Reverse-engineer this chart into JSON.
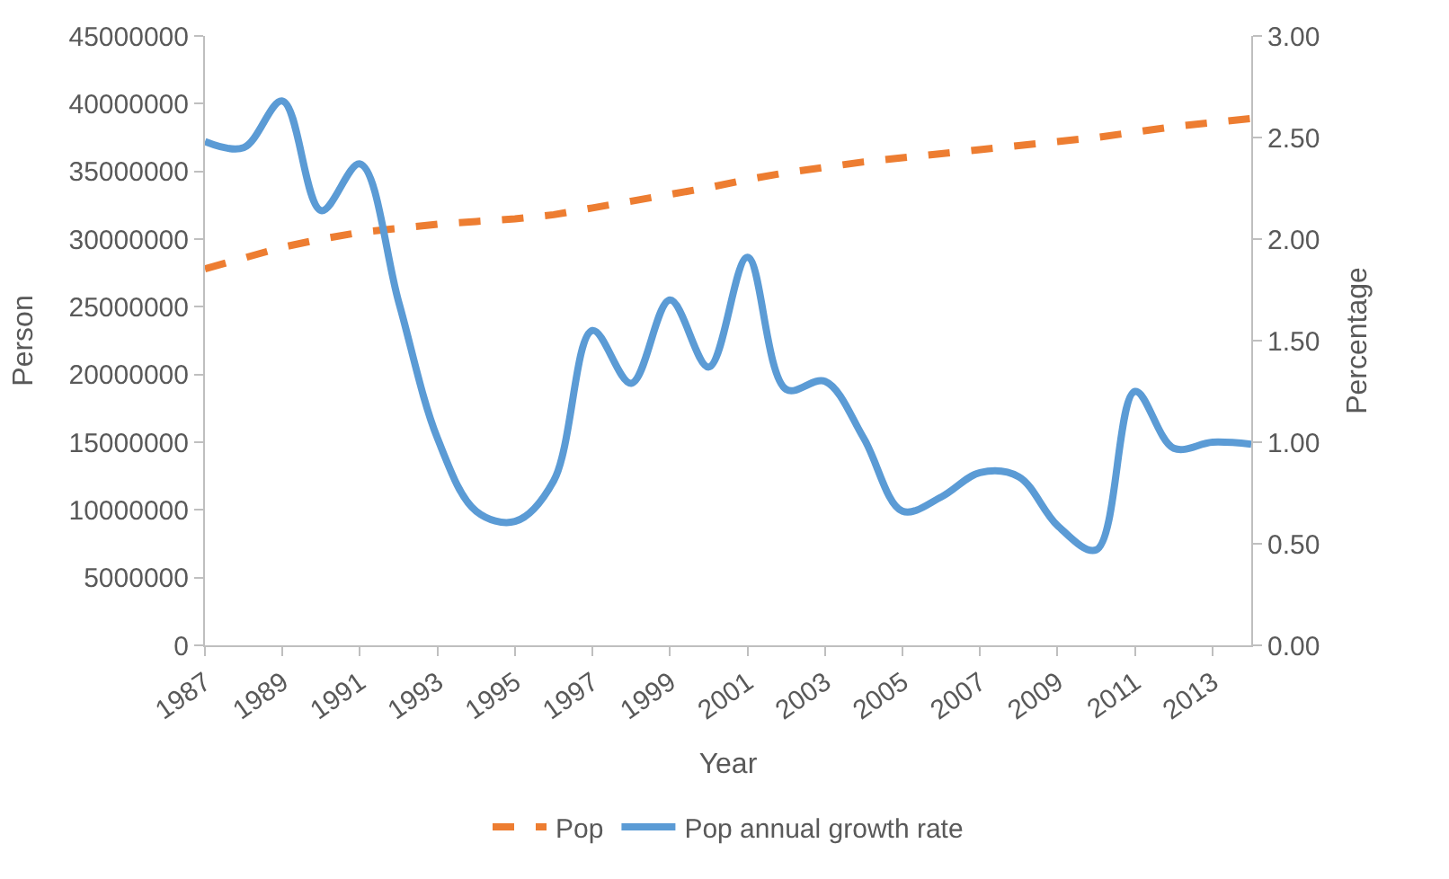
{
  "chart_data": {
    "type": "line",
    "xlabel": "Year",
    "ylabel": "Person",
    "y2label": "Percentage",
    "categories": [
      "1987",
      null,
      "1989",
      null,
      "1991",
      null,
      "1993",
      null,
      "1995",
      null,
      "1997",
      null,
      "1999",
      null,
      "2001",
      null,
      "2003",
      null,
      "2005",
      null,
      "2007",
      null,
      "2009",
      null,
      "2011",
      null,
      "2013",
      null
    ],
    "series": [
      {
        "name": "Pop",
        "color": "#ed7d31",
        "line_style": "dashed",
        "values": [
          27800000,
          28600000,
          29400000,
          30000000,
          30500000,
          30800000,
          31100000,
          31300000,
          31500000,
          31800000,
          32300000,
          32800000,
          33300000,
          33800000,
          34400000,
          34900000,
          35300000,
          35700000,
          36000000,
          36300000,
          36600000,
          36900000,
          37200000,
          37500000,
          37900000,
          38300000,
          38600000,
          38900000
        ]
      },
      {
        "name": "Pop annual growth rate",
        "color": "#5b9bd5",
        "line_style": "solid",
        "axis": "y2",
        "values": [
          2.48,
          2.45,
          2.68,
          2.14,
          2.37,
          1.69,
          1.02,
          0.66,
          0.61,
          0.81,
          1.55,
          1.29,
          1.7,
          1.37,
          1.91,
          1.26,
          1.3,
          1.02,
          0.66,
          0.73,
          0.85,
          0.83,
          0.59,
          0.47,
          1.25,
          0.97,
          1.0,
          0.99
        ]
      }
    ],
    "ylim": [
      0,
      45000000
    ],
    "yticks": [
      0,
      5000000,
      10000000,
      15000000,
      20000000,
      25000000,
      30000000,
      35000000,
      40000000,
      45000000
    ],
    "y2lim": [
      0,
      3
    ],
    "y2ticks": [
      {
        "value": 0,
        "label": "0.00"
      },
      {
        "value": 0.5,
        "label": "0.50"
      },
      {
        "value": 1,
        "label": "1.00"
      },
      {
        "value": 1.5,
        "label": "1.50"
      },
      {
        "value": 2,
        "label": "2.00"
      },
      {
        "value": 2.5,
        "label": "2.50"
      },
      {
        "value": 3,
        "label": "3.00"
      }
    ],
    "legend": "bottom",
    "marker": "none"
  }
}
